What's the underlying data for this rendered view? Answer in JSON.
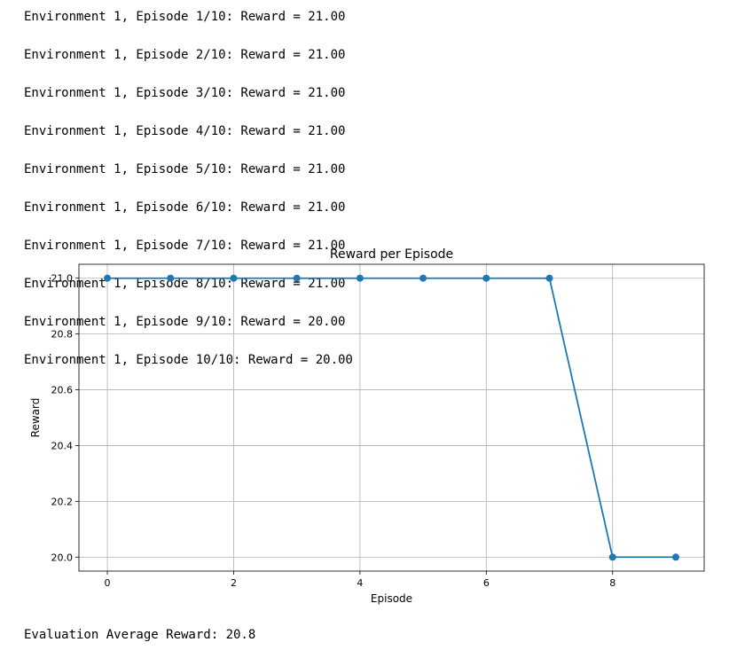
{
  "output": {
    "log_lines": [
      "Environment 1, Episode 1/10: Reward = 21.00",
      "Environment 1, Episode 2/10: Reward = 21.00",
      "Environment 1, Episode 3/10: Reward = 21.00",
      "Environment 1, Episode 4/10: Reward = 21.00",
      "Environment 1, Episode 5/10: Reward = 21.00",
      "Environment 1, Episode 6/10: Reward = 21.00",
      "Environment 1, Episode 7/10: Reward = 21.00",
      "Environment 1, Episode 8/10: Reward = 21.00",
      "Environment 1, Episode 9/10: Reward = 20.00",
      "Environment 1, Episode 10/10: Reward = 20.00"
    ],
    "summary": "Evaluation Average Reward: 20.8"
  },
  "colors": {
    "line": "#1f77b4",
    "grid": "#b0b0b0",
    "axes": "#000000"
  },
  "chart_data": {
    "type": "line",
    "title": "Reward per Episode",
    "xlabel": "Episode",
    "ylabel": "Reward",
    "x": [
      0,
      1,
      2,
      3,
      4,
      5,
      6,
      7,
      8,
      9
    ],
    "series": [
      {
        "values": [
          21.0,
          21.0,
          21.0,
          21.0,
          21.0,
          21.0,
          21.0,
          21.0,
          20.0,
          20.0
        ],
        "marker": "circle"
      }
    ],
    "xlim": [
      -0.45,
      9.45
    ],
    "ylim": [
      19.95,
      21.05
    ],
    "xticks": [
      0,
      2,
      4,
      6,
      8
    ],
    "xtick_labels": [
      "0",
      "2",
      "4",
      "6",
      "8"
    ],
    "yticks": [
      20.0,
      20.2,
      20.4,
      20.6,
      20.8,
      21.0
    ],
    "ytick_labels": [
      "20.0",
      "20.2",
      "20.4",
      "20.6",
      "20.8",
      "21.0"
    ],
    "grid": true,
    "legend": false
  }
}
